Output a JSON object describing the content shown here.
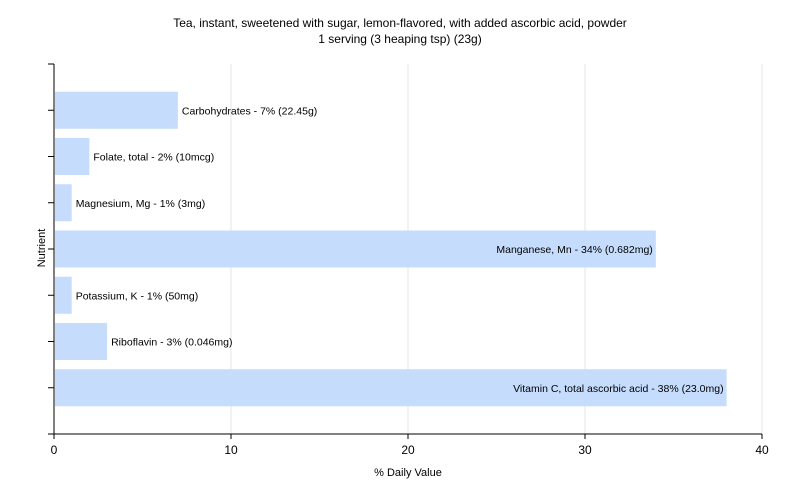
{
  "chart_data": {
    "type": "bar",
    "orientation": "horizontal",
    "title": "Tea, instant, sweetened with sugar, lemon-flavored, with added ascorbic acid, powder",
    "subtitle": "1 serving (3 heaping tsp) (23g)",
    "xlabel": "% Daily Value",
    "ylabel": "Nutrient",
    "xlim": [
      0,
      40
    ],
    "xticks": [
      0,
      10,
      20,
      30,
      40
    ],
    "grid": true,
    "bar_color": "#c5dcfc",
    "categories": [
      "Carbohydrates",
      "Folate, total",
      "Magnesium, Mg",
      "Manganese, Mn",
      "Potassium, K",
      "Riboflavin",
      "Vitamin C, total ascorbic acid"
    ],
    "values": [
      7,
      2,
      1,
      34,
      1,
      3,
      38
    ],
    "labels": [
      "Carbohydrates - 7% (22.45g)",
      "Folate, total - 2% (10mcg)",
      "Magnesium, Mg - 1% (3mg)",
      "Manganese, Mn - 34% (0.682mg)",
      "Potassium, K - 1% (50mg)",
      "Riboflavin - 3% (0.046mg)",
      "Vitamin C, total ascorbic acid - 38% (23.0mg)"
    ]
  }
}
